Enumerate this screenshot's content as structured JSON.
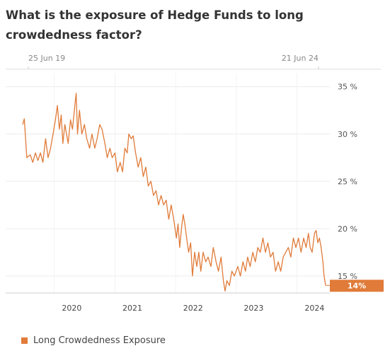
{
  "chart_data": {
    "type": "line",
    "title": "What is the exposure of Hedge Funds to long crowdedness factor?",
    "date_range": {
      "start": "25 Jun 19",
      "end": "21 Jun 24"
    },
    "x_ticks": [
      "2020",
      "2021",
      "2022",
      "2023",
      "2024"
    ],
    "y_ticks": [
      {
        "value": 35,
        "label": "35 %"
      },
      {
        "value": 30,
        "label": "30 %"
      },
      {
        "value": 25,
        "label": "25 %"
      },
      {
        "value": 20,
        "label": "20 %"
      },
      {
        "value": 15,
        "label": "15 %"
      }
    ],
    "ylim": [
      13.2,
      35.8
    ],
    "grid": true,
    "legend_position": "bottom-left",
    "series": [
      {
        "name": "Long Crowdedness Exposure",
        "color": "#e07b39",
        "last_value_label": "14%",
        "points": [
          [
            "2019-06-25",
            31.0
          ],
          [
            "2019-07-05",
            31.6
          ],
          [
            "2019-07-20",
            27.5
          ],
          [
            "2019-08-10",
            27.8
          ],
          [
            "2019-08-25",
            27.0
          ],
          [
            "2019-09-10",
            28.0
          ],
          [
            "2019-09-25",
            27.2
          ],
          [
            "2019-10-10",
            28.0
          ],
          [
            "2019-10-25",
            27.0
          ],
          [
            "2019-11-10",
            29.5
          ],
          [
            "2019-11-25",
            27.5
          ],
          [
            "2019-12-10",
            28.5
          ],
          [
            "2019-12-25",
            30.0
          ],
          [
            "2020-01-08",
            31.5
          ],
          [
            "2020-01-20",
            33.0
          ],
          [
            "2020-02-01",
            30.5
          ],
          [
            "2020-02-12",
            32.0
          ],
          [
            "2020-02-22",
            29.0
          ],
          [
            "2020-03-05",
            31.0
          ],
          [
            "2020-03-15",
            30.0
          ],
          [
            "2020-03-25",
            29.0
          ],
          [
            "2020-04-08",
            31.5
          ],
          [
            "2020-04-20",
            30.5
          ],
          [
            "2020-05-05",
            33.2
          ],
          [
            "2020-05-12",
            34.3
          ],
          [
            "2020-05-20",
            30.0
          ],
          [
            "2020-06-01",
            32.5
          ],
          [
            "2020-06-15",
            30.0
          ],
          [
            "2020-07-01",
            31.0
          ],
          [
            "2020-07-15",
            29.5
          ],
          [
            "2020-08-01",
            28.5
          ],
          [
            "2020-08-15",
            30.0
          ],
          [
            "2020-09-01",
            28.5
          ],
          [
            "2020-09-15",
            29.5
          ],
          [
            "2020-10-01",
            31.0
          ],
          [
            "2020-10-15",
            30.5
          ],
          [
            "2020-11-01",
            29.0
          ],
          [
            "2020-11-15",
            27.5
          ],
          [
            "2020-12-01",
            28.5
          ],
          [
            "2020-12-15",
            27.5
          ],
          [
            "2021-01-01",
            28.0
          ],
          [
            "2021-01-15",
            26.0
          ],
          [
            "2021-02-01",
            27.0
          ],
          [
            "2021-02-15",
            26.0
          ],
          [
            "2021-03-01",
            28.5
          ],
          [
            "2021-03-15",
            28.0
          ],
          [
            "2021-03-25",
            30.0
          ],
          [
            "2021-04-08",
            29.5
          ],
          [
            "2021-04-20",
            29.8
          ],
          [
            "2021-05-05",
            28.0
          ],
          [
            "2021-05-20",
            26.5
          ],
          [
            "2021-06-05",
            27.5
          ],
          [
            "2021-06-20",
            25.5
          ],
          [
            "2021-07-05",
            26.5
          ],
          [
            "2021-07-20",
            24.5
          ],
          [
            "2021-08-05",
            25.0
          ],
          [
            "2021-08-20",
            23.5
          ],
          [
            "2021-09-05",
            24.0
          ],
          [
            "2021-09-20",
            22.5
          ],
          [
            "2021-10-05",
            23.5
          ],
          [
            "2021-10-20",
            22.5
          ],
          [
            "2021-11-05",
            23.0
          ],
          [
            "2021-11-20",
            21.0
          ],
          [
            "2021-12-05",
            22.5
          ],
          [
            "2021-12-20",
            21.0
          ],
          [
            "2022-01-05",
            19.0
          ],
          [
            "2022-01-15",
            20.5
          ],
          [
            "2022-01-25",
            18.0
          ],
          [
            "2022-02-05",
            20.0
          ],
          [
            "2022-02-15",
            21.5
          ],
          [
            "2022-02-25",
            20.5
          ],
          [
            "2022-03-08",
            19.0
          ],
          [
            "2022-03-20",
            17.5
          ],
          [
            "2022-04-01",
            18.5
          ],
          [
            "2022-04-12",
            15.0
          ],
          [
            "2022-04-25",
            17.5
          ],
          [
            "2022-05-08",
            16.0
          ],
          [
            "2022-05-20",
            17.5
          ],
          [
            "2022-06-01",
            15.5
          ],
          [
            "2022-06-15",
            17.5
          ],
          [
            "2022-07-01",
            16.5
          ],
          [
            "2022-07-15",
            17.0
          ],
          [
            "2022-08-01",
            16.0
          ],
          [
            "2022-08-15",
            18.0
          ],
          [
            "2022-09-01",
            16.5
          ],
          [
            "2022-09-15",
            15.5
          ],
          [
            "2022-10-01",
            17.0
          ],
          [
            "2022-10-15",
            14.5
          ],
          [
            "2022-10-25",
            13.4
          ],
          [
            "2022-11-05",
            14.5
          ],
          [
            "2022-11-20",
            14.0
          ],
          [
            "2022-12-05",
            15.5
          ],
          [
            "2022-12-20",
            15.0
          ],
          [
            "2023-01-10",
            16.0
          ],
          [
            "2023-01-25",
            15.0
          ],
          [
            "2023-02-10",
            16.5
          ],
          [
            "2023-02-25",
            15.5
          ],
          [
            "2023-03-10",
            17.0
          ],
          [
            "2023-03-25",
            16.0
          ],
          [
            "2023-04-10",
            17.5
          ],
          [
            "2023-04-25",
            16.5
          ],
          [
            "2023-05-10",
            18.0
          ],
          [
            "2023-05-25",
            17.5
          ],
          [
            "2023-06-10",
            19.0
          ],
          [
            "2023-06-25",
            17.5
          ],
          [
            "2023-07-10",
            18.5
          ],
          [
            "2023-07-25",
            17.0
          ],
          [
            "2023-08-10",
            17.5
          ],
          [
            "2023-08-25",
            15.5
          ],
          [
            "2023-09-10",
            16.5
          ],
          [
            "2023-09-25",
            15.5
          ],
          [
            "2023-10-10",
            17.0
          ],
          [
            "2023-10-25",
            17.5
          ],
          [
            "2023-11-10",
            18.0
          ],
          [
            "2023-11-25",
            17.0
          ],
          [
            "2023-12-10",
            19.0
          ],
          [
            "2023-12-25",
            18.0
          ],
          [
            "2024-01-10",
            19.0
          ],
          [
            "2024-01-25",
            17.5
          ],
          [
            "2024-02-10",
            19.0
          ],
          [
            "2024-02-25",
            18.0
          ],
          [
            "2024-03-10",
            19.5
          ],
          [
            "2024-03-20",
            18.0
          ],
          [
            "2024-04-01",
            17.5
          ],
          [
            "2024-04-15",
            19.5
          ],
          [
            "2024-04-25",
            19.8
          ],
          [
            "2024-05-05",
            18.5
          ],
          [
            "2024-05-15",
            19.0
          ],
          [
            "2024-05-25",
            18.0
          ],
          [
            "2024-06-05",
            16.5
          ],
          [
            "2024-06-12",
            15.0
          ],
          [
            "2024-06-21",
            14.0
          ]
        ]
      }
    ]
  }
}
